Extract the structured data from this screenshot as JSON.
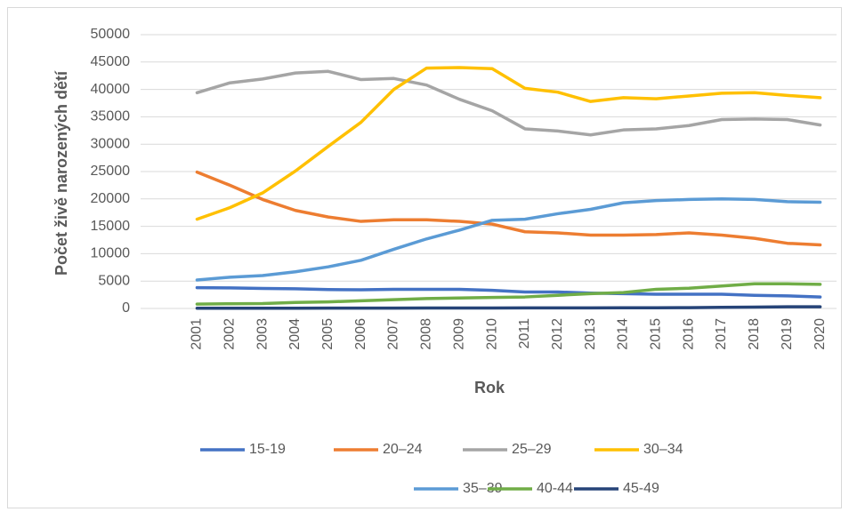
{
  "chart_data": {
    "type": "line",
    "x_label": "Rok",
    "y_label": "Počet živě narozených dětí",
    "categories": [
      "2001",
      "2002",
      "2003",
      "2004",
      "2005",
      "2006",
      "2007",
      "2008",
      "2009",
      "2010",
      "2011",
      "2012",
      "2013",
      "2014",
      "2015",
      "2016",
      "2017",
      "2018",
      "2019",
      "2020"
    ],
    "series": [
      {
        "name": "15-19",
        "color": "#4472c4",
        "values": [
          3800,
          3750,
          3650,
          3600,
          3450,
          3400,
          3500,
          3500,
          3500,
          3300,
          3000,
          3000,
          2800,
          2700,
          2600,
          2600,
          2600,
          2400,
          2300,
          2100
        ]
      },
      {
        "name": "20–24",
        "color": "#ed7d31",
        "values": [
          24900,
          22500,
          19900,
          17900,
          16700,
          15900,
          16200,
          16200,
          15900,
          15400,
          14000,
          13800,
          13400,
          13400,
          13500,
          13800,
          13400,
          12800,
          11900,
          11600
        ]
      },
      {
        "name": "25–29",
        "color": "#a5a5a5",
        "values": [
          39400,
          41200,
          41900,
          43000,
          43300,
          41800,
          42000,
          40800,
          38200,
          36100,
          32800,
          32400,
          31700,
          32600,
          32800,
          33400,
          34500,
          34600,
          34500,
          33500
        ]
      },
      {
        "name": "30–34",
        "color": "#ffc000",
        "values": [
          16300,
          18400,
          21100,
          25100,
          29600,
          34000,
          40000,
          43900,
          44000,
          43800,
          40200,
          39500,
          37800,
          38500,
          38300,
          38800,
          39300,
          39400,
          38900,
          38500
        ]
      },
      {
        "name": "35–39",
        "color": "#5b9bd5",
        "values": [
          5200,
          5700,
          6000,
          6700,
          7600,
          8800,
          10800,
          12700,
          14300,
          16100,
          16300,
          17300,
          18100,
          19300,
          19700,
          19900,
          20000,
          19900,
          19500,
          19400
        ]
      },
      {
        "name": "40-44",
        "color": "#70ad47",
        "values": [
          800,
          850,
          900,
          1100,
          1200,
          1400,
          1600,
          1800,
          1900,
          2000,
          2100,
          2400,
          2700,
          2900,
          3500,
          3700,
          4100,
          4500,
          4500,
          4400
        ]
      },
      {
        "name": "45-49",
        "color": "#264478",
        "values": [
          50,
          50,
          50,
          50,
          60,
          60,
          70,
          80,
          80,
          90,
          100,
          100,
          110,
          120,
          130,
          150,
          200,
          250,
          300,
          300
        ]
      }
    ],
    "ylim": [
      0,
      50000
    ],
    "yticks": [
      0,
      5000,
      10000,
      15000,
      20000,
      25000,
      30000,
      35000,
      40000,
      45000,
      50000
    ],
    "grid": true,
    "legend": "bottom"
  }
}
